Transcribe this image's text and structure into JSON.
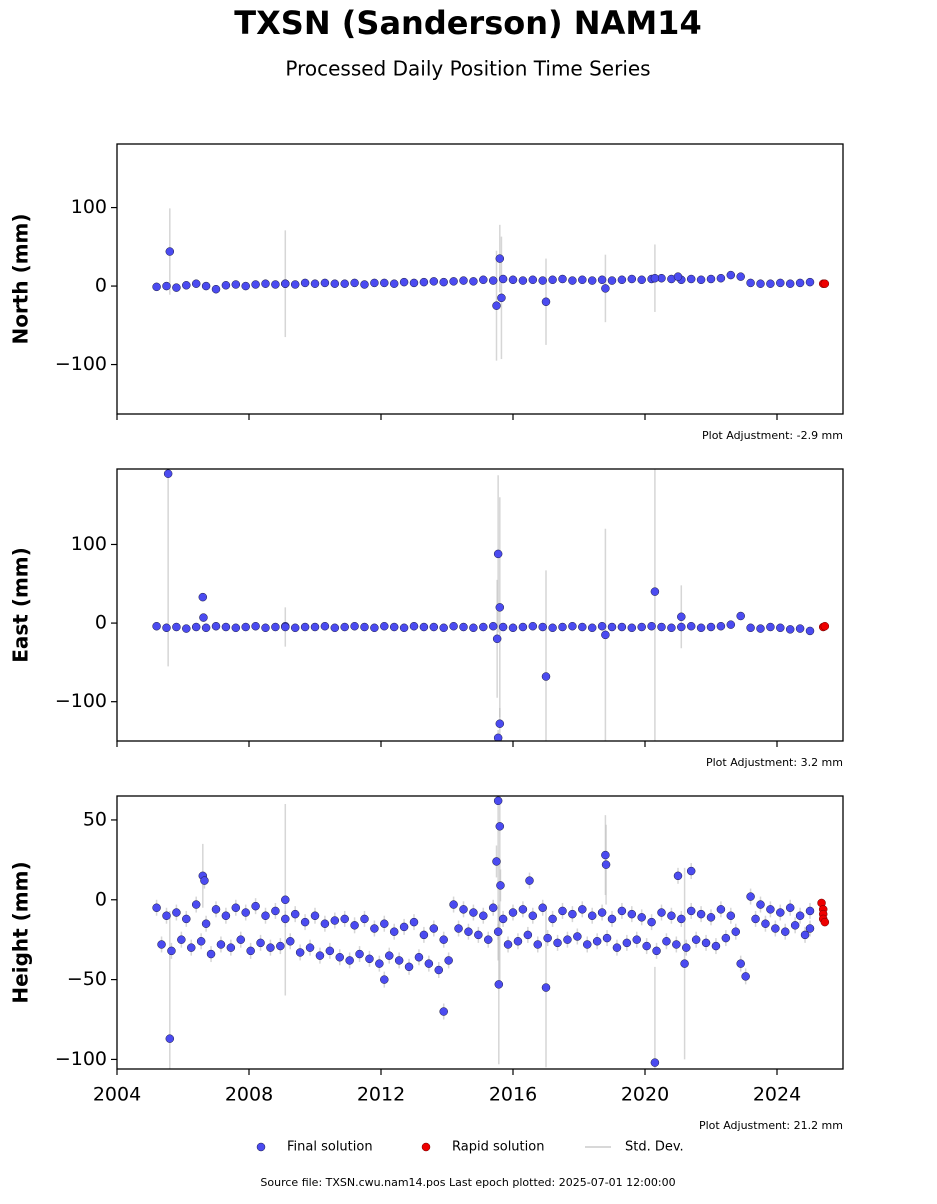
{
  "title": "TXSN (Sanderson) NAM14",
  "subtitle": "Processed Daily Position Time Series",
  "footer": "Source file: TXSN.cwu.nam14.pos  Last epoch plotted: 2025-07-01 12:00:00",
  "chart_data": [
    {
      "type": "scatter",
      "ylabel": "North (mm)",
      "annotation": "Plot Adjustment: -2.9 mm",
      "xlim": [
        2004,
        2026
      ],
      "xticks": [
        2004,
        2008,
        2012,
        2016,
        2020,
        2024
      ],
      "ylim": [
        -163,
        181
      ],
      "yticks": [
        {
          "value": -100,
          "label": "−100"
        },
        0,
        100
      ],
      "series": [
        {
          "name": "Final solution",
          "color": "#4b4bf0",
          "error_name": "Std. Dev.",
          "x": [
            2005.2,
            2005.5,
            2005.8,
            2006.1,
            2006.4,
            2006.7,
            2007.0,
            2007.3,
            2007.6,
            2007.9,
            2008.2,
            2008.5,
            2008.8,
            2009.1,
            2009.4,
            2009.7,
            2010.0,
            2010.3,
            2010.6,
            2010.9,
            2011.2,
            2011.5,
            2011.8,
            2012.1,
            2012.4,
            2012.7,
            2013.0,
            2013.3,
            2013.6,
            2013.9,
            2014.2,
            2014.5,
            2014.8,
            2015.1,
            2015.4,
            2015.7,
            2016.0,
            2016.3,
            2016.6,
            2016.9,
            2017.2,
            2017.5,
            2017.8,
            2018.1,
            2018.4,
            2018.7,
            2019.0,
            2019.3,
            2019.6,
            2019.9,
            2020.2,
            2020.5,
            2020.8,
            2021.1,
            2021.4,
            2021.7,
            2022.0,
            2022.3,
            2022.6,
            2022.9,
            2023.2,
            2023.5,
            2023.8,
            2024.1,
            2024.4,
            2024.7,
            2025.0,
            2005.6,
            2015.6,
            2015.5,
            2015.65,
            2017.0,
            2018.8,
            2021.0,
            2009.1,
            2020.3
          ],
          "values": [
            -1,
            0,
            -2,
            1,
            3,
            0,
            -4,
            1,
            2,
            0,
            2,
            3,
            2,
            3,
            2,
            4,
            3,
            4,
            3,
            3,
            4,
            2,
            4,
            4,
            3,
            5,
            4,
            5,
            6,
            5,
            6,
            7,
            6,
            8,
            7,
            9,
            8,
            7,
            8,
            7,
            8,
            9,
            7,
            8,
            7,
            8,
            7,
            8,
            9,
            8,
            9,
            10,
            9,
            8,
            9,
            8,
            9,
            10,
            14,
            12,
            4,
            3,
            3,
            4,
            3,
            4,
            5,
            44,
            35,
            -25,
            -15,
            -20,
            -3,
            12,
            3,
            10
          ],
          "errors": [
            2,
            2,
            2,
            2,
            2,
            2,
            2,
            2,
            2,
            2,
            2,
            2,
            2,
            2,
            2,
            2,
            2,
            2,
            2,
            2,
            2,
            2,
            2,
            2,
            2,
            2,
            2,
            2,
            2,
            2,
            2,
            2,
            2,
            2,
            2,
            2,
            2,
            2,
            2,
            2,
            2,
            2,
            2,
            2,
            2,
            2,
            2,
            2,
            2,
            2,
            2,
            2,
            2,
            2,
            2,
            2,
            2,
            2,
            2,
            2,
            2,
            2,
            2,
            2,
            2,
            2,
            2,
            55,
            43,
            70,
            78,
            55,
            43,
            3,
            68,
            43
          ]
        },
        {
          "name": "Rapid solution",
          "color": "#ee0000",
          "x": [
            2025.4,
            2025.45
          ],
          "values": [
            3,
            3
          ]
        }
      ]
    },
    {
      "type": "scatter",
      "ylabel": "East (mm)",
      "annotation": "Plot Adjustment: 3.2 mm",
      "xlim": [
        2004,
        2026
      ],
      "xticks": [
        2004,
        2008,
        2012,
        2016,
        2020,
        2024
      ],
      "ylim": [
        -150,
        196
      ],
      "yticks": [
        {
          "value": -100,
          "label": "−100"
        },
        0,
        100
      ],
      "series": [
        {
          "name": "Final solution",
          "color": "#4b4bf0",
          "error_name": "Std. Dev.",
          "x": [
            2005.2,
            2005.5,
            2005.8,
            2006.1,
            2006.4,
            2006.7,
            2007.0,
            2007.3,
            2007.6,
            2007.9,
            2008.2,
            2008.5,
            2008.8,
            2009.1,
            2009.4,
            2009.7,
            2010.0,
            2010.3,
            2010.6,
            2010.9,
            2011.2,
            2011.5,
            2011.8,
            2012.1,
            2012.4,
            2012.7,
            2013.0,
            2013.3,
            2013.6,
            2013.9,
            2014.2,
            2014.5,
            2014.8,
            2015.1,
            2015.4,
            2015.7,
            2016.0,
            2016.3,
            2016.6,
            2016.9,
            2017.2,
            2017.5,
            2017.8,
            2018.1,
            2018.4,
            2018.7,
            2019.0,
            2019.3,
            2019.6,
            2019.9,
            2020.2,
            2020.5,
            2020.8,
            2021.1,
            2021.4,
            2021.7,
            2022.0,
            2022.3,
            2022.6,
            2022.9,
            2023.2,
            2023.5,
            2023.8,
            2024.1,
            2024.4,
            2024.7,
            2025.0,
            2005.55,
            2006.6,
            2006.62,
            2015.55,
            2015.6,
            2015.52,
            2015.6,
            2015.55,
            2017.0,
            2018.8,
            2020.3,
            2021.1,
            2009.1
          ],
          "values": [
            -4,
            -6,
            -5,
            -7,
            -5,
            -6,
            -4,
            -5,
            -6,
            -5,
            -4,
            -6,
            -5,
            -4,
            -6,
            -5,
            -5,
            -4,
            -6,
            -5,
            -4,
            -5,
            -6,
            -4,
            -5,
            -6,
            -4,
            -5,
            -5,
            -6,
            -4,
            -5,
            -6,
            -5,
            -4,
            -5,
            -6,
            -5,
            -4,
            -5,
            -6,
            -5,
            -4,
            -5,
            -6,
            -4,
            -5,
            -5,
            -6,
            -5,
            -4,
            -5,
            -6,
            -5,
            -4,
            -6,
            -5,
            -4,
            -2,
            9,
            -6,
            -7,
            -5,
            -6,
            -8,
            -7,
            -10,
            190,
            33,
            7,
            88,
            20,
            -20,
            -128,
            -146,
            -68,
            -15,
            40,
            8,
            -5
          ],
          "errors": [
            2,
            2,
            2,
            2,
            2,
            2,
            2,
            2,
            2,
            2,
            2,
            2,
            2,
            2,
            2,
            2,
            2,
            2,
            2,
            2,
            2,
            2,
            2,
            2,
            2,
            2,
            2,
            2,
            2,
            2,
            2,
            2,
            2,
            2,
            2,
            2,
            2,
            2,
            2,
            2,
            2,
            2,
            2,
            2,
            2,
            2,
            2,
            2,
            2,
            2,
            2,
            2,
            2,
            2,
            2,
            2,
            2,
            2,
            2,
            2,
            2,
            2,
            2,
            2,
            2,
            2,
            2,
            245,
            3,
            3,
            100,
            140,
            75,
            20,
            10,
            135,
            135,
            235,
            40,
            25
          ]
        },
        {
          "name": "Rapid solution",
          "color": "#ee0000",
          "x": [
            2025.4,
            2025.45
          ],
          "values": [
            -5,
            -4
          ]
        }
      ]
    },
    {
      "type": "scatter",
      "ylabel": "Height (mm)",
      "annotation": "Plot Adjustment: 21.2 mm",
      "xlim": [
        2004,
        2026
      ],
      "xticks": [
        2004,
        2008,
        2012,
        2016,
        2020,
        2024
      ],
      "ylim": [
        -106,
        65
      ],
      "yticks": [
        {
          "value": -100,
          "label": "−100"
        },
        {
          "value": -50,
          "label": "−50"
        },
        0,
        50
      ],
      "series": [
        {
          "name": "Final solution",
          "color": "#4b4bf0",
          "error_name": "Std. Dev.",
          "x": [
            2005.2,
            2005.5,
            2005.8,
            2006.1,
            2006.4,
            2006.7,
            2007.0,
            2007.3,
            2007.6,
            2007.9,
            2008.2,
            2008.5,
            2008.8,
            2009.1,
            2009.4,
            2009.7,
            2010.0,
            2010.3,
            2010.6,
            2010.9,
            2011.2,
            2011.5,
            2011.8,
            2012.1,
            2012.4,
            2012.7,
            2013.0,
            2013.3,
            2013.6,
            2013.9,
            2014.2,
            2014.5,
            2014.8,
            2015.1,
            2015.4,
            2015.7,
            2016.0,
            2016.3,
            2016.6,
            2016.9,
            2017.2,
            2017.5,
            2017.8,
            2018.1,
            2018.4,
            2018.7,
            2019.0,
            2019.3,
            2019.6,
            2019.9,
            2020.2,
            2020.5,
            2020.8,
            2021.1,
            2021.4,
            2021.7,
            2022.0,
            2022.3,
            2022.6,
            2022.9,
            2023.2,
            2023.5,
            2023.8,
            2024.1,
            2024.4,
            2024.7,
            2025.0,
            2005.35,
            2005.65,
            2005.95,
            2006.25,
            2006.55,
            2006.85,
            2007.15,
            2007.45,
            2007.75,
            2008.05,
            2008.35,
            2008.65,
            2008.95,
            2009.25,
            2009.55,
            2009.85,
            2010.15,
            2010.45,
            2010.75,
            2011.05,
            2011.35,
            2011.65,
            2011.95,
            2012.25,
            2012.55,
            2012.85,
            2013.15,
            2013.45,
            2013.75,
            2014.05,
            2014.35,
            2014.65,
            2014.95,
            2015.25,
            2015.55,
            2015.85,
            2016.15,
            2016.45,
            2016.75,
            2017.05,
            2017.35,
            2017.65,
            2017.95,
            2018.25,
            2018.55,
            2018.85,
            2019.15,
            2019.45,
            2019.75,
            2020.05,
            2020.35,
            2020.65,
            2020.95,
            2021.25,
            2021.55,
            2021.85,
            2022.15,
            2022.45,
            2022.75,
            2023.05,
            2023.35,
            2023.65,
            2023.95,
            2024.25,
            2024.55,
            2024.85,
            2025.0,
            2005.6,
            2006.6,
            2006.65,
            2009.1,
            2012.1,
            2013.9,
            2015.55,
            2015.6,
            2015.5,
            2015.62,
            2015.57,
            2016.5,
            2017.0,
            2018.8,
            2018.82,
            2020.3,
            2021.0,
            2021.4,
            2021.2
          ],
          "values": [
            -5,
            -10,
            -8,
            -12,
            -3,
            -15,
            -6,
            -10,
            -5,
            -8,
            -4,
            -10,
            -7,
            -12,
            -9,
            -14,
            -10,
            -15,
            -13,
            -12,
            -16,
            -12,
            -18,
            -15,
            -20,
            -17,
            -14,
            -22,
            -18,
            -25,
            -3,
            -6,
            -8,
            -10,
            -5,
            -12,
            -8,
            -6,
            -10,
            -5,
            -12,
            -7,
            -9,
            -6,
            -10,
            -8,
            -12,
            -7,
            -9,
            -11,
            -14,
            -8,
            -10,
            -12,
            -7,
            -9,
            -11,
            -6,
            -10,
            -40,
            2,
            -3,
            -6,
            -8,
            -5,
            -10,
            -7,
            -28,
            -32,
            -25,
            -30,
            -26,
            -34,
            -28,
            -30,
            -25,
            -32,
            -27,
            -30,
            -29,
            -26,
            -33,
            -30,
            -35,
            -32,
            -36,
            -38,
            -34,
            -37,
            -40,
            -35,
            -38,
            -42,
            -36,
            -40,
            -44,
            -38,
            -18,
            -20,
            -22,
            -25,
            -20,
            -28,
            -26,
            -22,
            -28,
            -24,
            -27,
            -25,
            -23,
            -28,
            -26,
            -24,
            -30,
            -27,
            -25,
            -29,
            -32,
            -26,
            -28,
            -30,
            -25,
            -27,
            -29,
            -24,
            -20,
            -48,
            -12,
            -15,
            -18,
            -20,
            -16,
            -22,
            -18,
            -87,
            15,
            12,
            0,
            -50,
            -70,
            62,
            46,
            24,
            9,
            -53,
            12,
            -55,
            28,
            22,
            -102,
            15,
            18,
            -40
          ],
          "errors": [
            5,
            5,
            5,
            5,
            5,
            5,
            5,
            5,
            5,
            5,
            5,
            5,
            5,
            5,
            5,
            5,
            5,
            5,
            5,
            5,
            5,
            5,
            5,
            5,
            5,
            5,
            5,
            5,
            5,
            5,
            5,
            5,
            5,
            5,
            5,
            5,
            5,
            5,
            5,
            5,
            5,
            5,
            5,
            5,
            5,
            5,
            5,
            5,
            5,
            5,
            5,
            5,
            5,
            5,
            5,
            5,
            5,
            5,
            5,
            5,
            5,
            5,
            5,
            5,
            5,
            5,
            5,
            5,
            5,
            5,
            5,
            5,
            5,
            5,
            5,
            5,
            5,
            5,
            5,
            5,
            5,
            5,
            5,
            5,
            5,
            5,
            5,
            5,
            5,
            5,
            5,
            5,
            5,
            5,
            5,
            5,
            5,
            5,
            5,
            5,
            5,
            5,
            5,
            5,
            5,
            5,
            5,
            5,
            5,
            5,
            5,
            5,
            5,
            5,
            5,
            5,
            5,
            5,
            5,
            5,
            5,
            5,
            5,
            5,
            5,
            5,
            5,
            5,
            5,
            5,
            5,
            5,
            5,
            5,
            80,
            20,
            5,
            60,
            5,
            5,
            100,
            100,
            10,
            10,
            50,
            5,
            50,
            25,
            25,
            60,
            5,
            5,
            60
          ]
        },
        {
          "name": "Rapid solution",
          "color": "#ee0000",
          "x": [
            2025.35,
            2025.4,
            2025.4,
            2025.4,
            2025.45
          ],
          "values": [
            -2,
            -6,
            -9,
            -12,
            -14
          ]
        }
      ]
    }
  ]
}
